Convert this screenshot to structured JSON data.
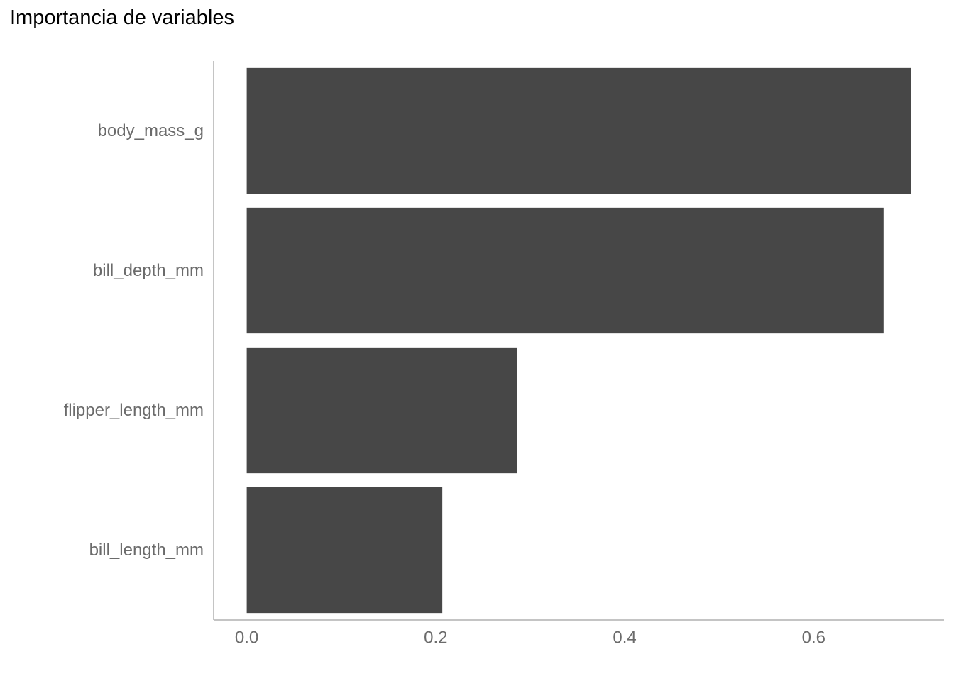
{
  "chart_data": {
    "type": "bar",
    "orientation": "horizontal",
    "title": "Importancia de variables",
    "xlabel": "",
    "ylabel": "",
    "categories": [
      "body_mass_g",
      "bill_depth_mm",
      "flipper_length_mm",
      "bill_length_mm"
    ],
    "values": [
      0.703,
      0.674,
      0.286,
      0.207
    ],
    "xlim": [
      -0.035,
      0.738
    ],
    "xticks": [
      "0.0",
      "0.2",
      "0.4",
      "0.6"
    ],
    "xtick_values": [
      0.0,
      0.2,
      0.4,
      0.6
    ],
    "grid": false,
    "legend": "none",
    "bar_color": "#474747",
    "axis_color": "#c4c4c4",
    "tick_label_color": "#6b6b6b"
  }
}
